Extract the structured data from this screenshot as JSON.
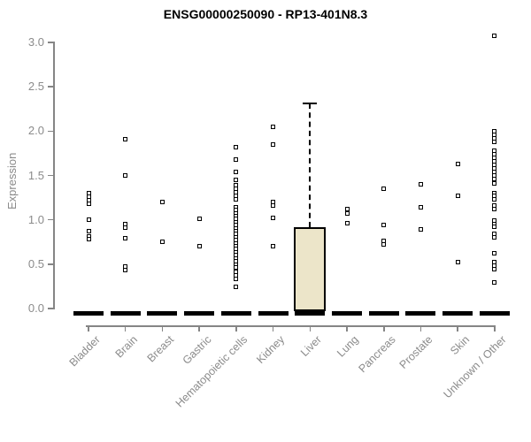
{
  "chart_data": {
    "type": "scatter",
    "subtype": "boxplot-with-points",
    "title": "ENSG00000250090 - RP13-401N8.3",
    "xlabel": "",
    "ylabel": "Expression",
    "ylim": [
      0.0,
      3.0
    ],
    "grid": false,
    "axis_color": "#858585",
    "text_color": "#8b8b8b",
    "marker_color": "#000000",
    "yticks": [
      {
        "value": 0.0,
        "label": "0.0"
      },
      {
        "value": 0.5,
        "label": "0.5"
      },
      {
        "value": 1.0,
        "label": "1.0"
      },
      {
        "value": 1.5,
        "label": "1.5"
      },
      {
        "value": 2.0,
        "label": "2.0"
      },
      {
        "value": 2.5,
        "label": "2.5"
      },
      {
        "value": 3.0,
        "label": "3.0"
      }
    ],
    "categories": [
      "Bladder",
      "Brain",
      "Breast",
      "Gastric",
      "Hematopoietic cells",
      "Kidney",
      "Liver",
      "Lung",
      "Pancreas",
      "Prostate",
      "Skin",
      "Unknown / Other"
    ],
    "zero_dash_at_all_categories": true,
    "zero_dash_note": "thick black dash at expression 0 under every category",
    "series": [
      {
        "name": "Bladder",
        "values": [
          1.3,
          1.26,
          1.22,
          1.18,
          1.0,
          0.87,
          0.81,
          0.78
        ]
      },
      {
        "name": "Brain",
        "values": [
          1.91,
          1.5,
          0.95,
          0.91,
          0.79,
          0.47,
          0.43
        ]
      },
      {
        "name": "Breast",
        "values": [
          1.2,
          0.75
        ]
      },
      {
        "name": "Gastric",
        "values": [
          1.01,
          0.7
        ]
      },
      {
        "name": "Hematopoietic cells",
        "values": [
          1.82,
          1.68,
          1.54,
          1.45,
          1.39,
          1.35,
          1.31,
          1.27,
          1.23,
          1.14,
          1.11,
          1.07,
          1.04,
          1.01,
          0.97,
          0.94,
          0.9,
          0.87,
          0.84,
          0.8,
          0.77,
          0.73,
          0.7,
          0.67,
          0.63,
          0.6,
          0.56,
          0.53,
          0.49,
          0.46,
          0.41,
          0.37,
          0.33,
          0.24
        ]
      },
      {
        "name": "Kidney",
        "values": [
          2.05,
          1.85,
          1.2,
          1.16,
          1.02,
          0.7
        ]
      },
      {
        "name": "Liver",
        "values": []
      },
      {
        "name": "Lung",
        "values": [
          1.12,
          1.07,
          0.96
        ]
      },
      {
        "name": "Pancreas",
        "values": [
          1.35,
          0.94,
          0.76,
          0.72
        ]
      },
      {
        "name": "Prostate",
        "values": [
          1.4,
          1.14,
          0.89
        ]
      },
      {
        "name": "Skin",
        "values": [
          1.63,
          1.27,
          0.52
        ]
      },
      {
        "name": "Unknown / Other",
        "values": [
          3.07,
          2.0,
          1.96,
          1.92,
          1.88,
          1.78,
          1.74,
          1.7,
          1.66,
          1.62,
          1.58,
          1.54,
          1.5,
          1.46,
          1.41,
          1.3,
          1.27,
          1.23,
          1.16,
          1.12,
          0.99,
          0.95,
          0.92,
          0.84,
          0.8,
          0.62,
          0.52,
          0.48,
          0.44,
          0.29
        ]
      }
    ],
    "box": {
      "category": "Liver",
      "whisker_high": 2.31,
      "q3": 0.92,
      "median": 0.0,
      "q1": 0.0,
      "whisker_low": 0.0,
      "fill": "#ECE5C9"
    }
  }
}
